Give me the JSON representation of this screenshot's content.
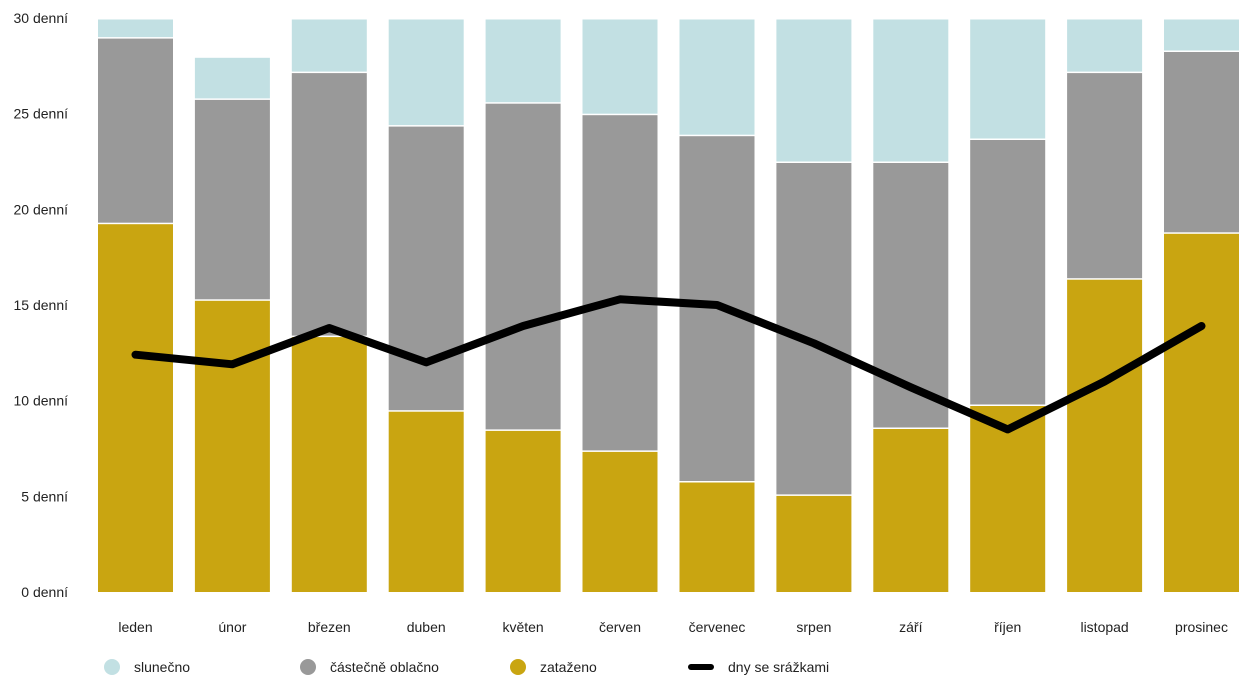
{
  "chart_data": {
    "type": "bar",
    "stacked": true,
    "categories": [
      "leden",
      "únor",
      "březen",
      "duben",
      "květen",
      "červen",
      "červenec",
      "srpen",
      "září",
      "říjen",
      "listopad",
      "prosinec"
    ],
    "ylim": [
      0,
      30
    ],
    "yticks": [
      "0 denní",
      "5 denní",
      "10 denní",
      "15 denní",
      "20 denní",
      "25 denní",
      "30 denní"
    ],
    "series": [
      {
        "name": "zataženo",
        "kind": "bar",
        "color": "#c9a511",
        "values": [
          19.3,
          15.3,
          13.4,
          9.5,
          8.5,
          7.4,
          5.8,
          5.1,
          8.6,
          9.8,
          16.4,
          18.8
        ]
      },
      {
        "name": "částečně oblačno",
        "kind": "bar",
        "color": "#999999",
        "values": [
          9.7,
          10.5,
          13.8,
          14.9,
          17.1,
          17.6,
          18.1,
          17.4,
          13.9,
          13.9,
          10.8,
          9.5
        ]
      },
      {
        "name": "slunečno",
        "kind": "bar",
        "color": "#c2e0e3",
        "values": [
          1.0,
          2.2,
          2.8,
          5.6,
          4.4,
          5.0,
          6.1,
          7.5,
          7.5,
          6.3,
          2.8,
          1.7
        ]
      },
      {
        "name": "dny se srážkami",
        "kind": "line",
        "color": "#000000",
        "values": [
          12.4,
          11.9,
          13.8,
          12.0,
          13.9,
          15.3,
          15.0,
          13.0,
          10.7,
          8.5,
          11.0,
          13.9
        ]
      }
    ],
    "legend_position": "bottom-left",
    "grid": false
  },
  "legend": [
    {
      "label": "slunečno",
      "color": "#c2e0e3",
      "shape": "circle"
    },
    {
      "label": "částečně oblačno",
      "color": "#999999",
      "shape": "circle"
    },
    {
      "label": "zataženo",
      "color": "#c9a511",
      "shape": "circle"
    },
    {
      "label": "dny se srážkami",
      "color": "#000000",
      "shape": "line"
    }
  ]
}
